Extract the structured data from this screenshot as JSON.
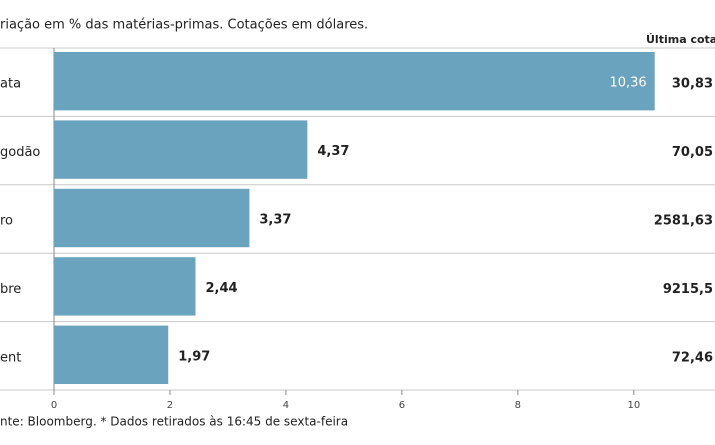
{
  "chart_data": {
    "type": "bar",
    "orientation": "horizontal",
    "title": "riação em % das matérias-primas. Cotações em dólares.",
    "categories": [
      "ata",
      "godão",
      "ro",
      "bre",
      "ent"
    ],
    "values": [
      10.36,
      4.37,
      3.37,
      2.44,
      1.97
    ],
    "value_labels": [
      "10,36",
      "4,37",
      "3,37",
      "2,44",
      "1,97"
    ],
    "color": "#6aa3bd",
    "xlim": [
      0,
      11.4
    ],
    "xticks": [
      0,
      2,
      4,
      6,
      8,
      10
    ],
    "last_price_header": "Última cotaç",
    "last_prices": [
      "30,83",
      "70,05",
      "2581,63",
      "9215,5",
      "72,46"
    ],
    "source": "nte: Bloomberg.  * Dados retirados às 16:45 de sexta-feira"
  }
}
